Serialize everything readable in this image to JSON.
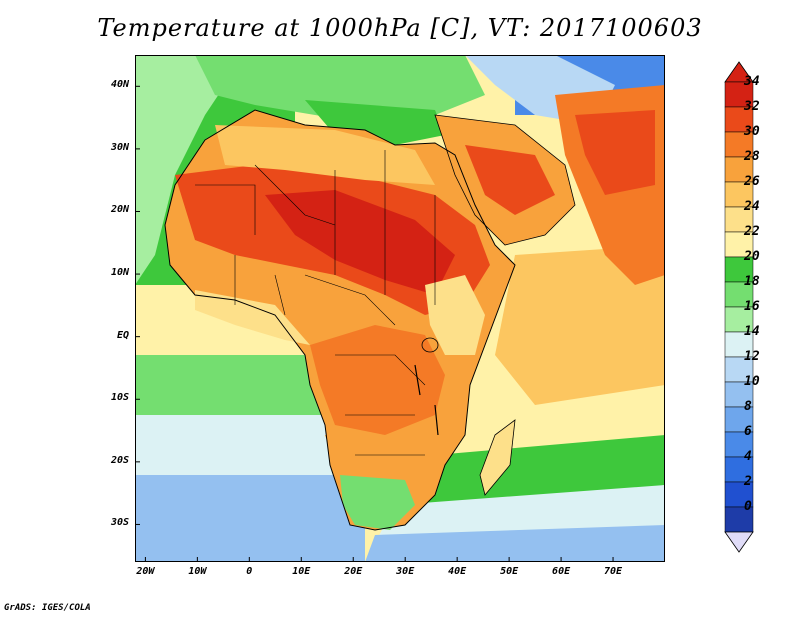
{
  "title": "Temperature at 1000hPa [C], VT: 2017100603",
  "credit": "GrADS: IGES/COLA",
  "map": {
    "lon_range": [
      -22,
      80
    ],
    "lat_range": [
      -36,
      45
    ],
    "lat_ticks": [
      {
        "value": 40,
        "label": "40N"
      },
      {
        "value": 30,
        "label": "30N"
      },
      {
        "value": 20,
        "label": "20N"
      },
      {
        "value": 10,
        "label": "10N"
      },
      {
        "value": 0,
        "label": "EQ"
      },
      {
        "value": -10,
        "label": "10S"
      },
      {
        "value": -20,
        "label": "20S"
      },
      {
        "value": -30,
        "label": "30S"
      }
    ],
    "lon_ticks": [
      {
        "value": -20,
        "label": "20W"
      },
      {
        "value": -10,
        "label": "10W"
      },
      {
        "value": 0,
        "label": "0"
      },
      {
        "value": 10,
        "label": "10E"
      },
      {
        "value": 20,
        "label": "20E"
      },
      {
        "value": 30,
        "label": "30E"
      },
      {
        "value": 40,
        "label": "40E"
      },
      {
        "value": 50,
        "label": "50E"
      },
      {
        "value": 60,
        "label": "60E"
      },
      {
        "value": 70,
        "label": "70E"
      }
    ]
  },
  "colorbar": {
    "levels": [
      0,
      2,
      4,
      6,
      8,
      10,
      12,
      14,
      16,
      18,
      20,
      22,
      24,
      26,
      28,
      30,
      32,
      34
    ],
    "labels": [
      "34",
      "32",
      "30",
      "28",
      "26",
      "24",
      "22",
      "20",
      "18",
      "16",
      "14",
      "12",
      "10",
      "8",
      "6",
      "4",
      "2",
      "0"
    ],
    "colors": [
      "#1e3ca8",
      "#2050d0",
      "#2f6ee0",
      "#4a8ae8",
      "#6ea6ec",
      "#94c0f0",
      "#b8d8f4",
      "#dcf2f4",
      "#a6eea0",
      "#74de70",
      "#3ec83c",
      "#fff2a8",
      "#fde08a",
      "#fcc660",
      "#f8a23c",
      "#f47a26",
      "#ea4a1a",
      "#d42214"
    ],
    "under_color": "#e0dcf8",
    "over_color": "#d42214"
  }
}
